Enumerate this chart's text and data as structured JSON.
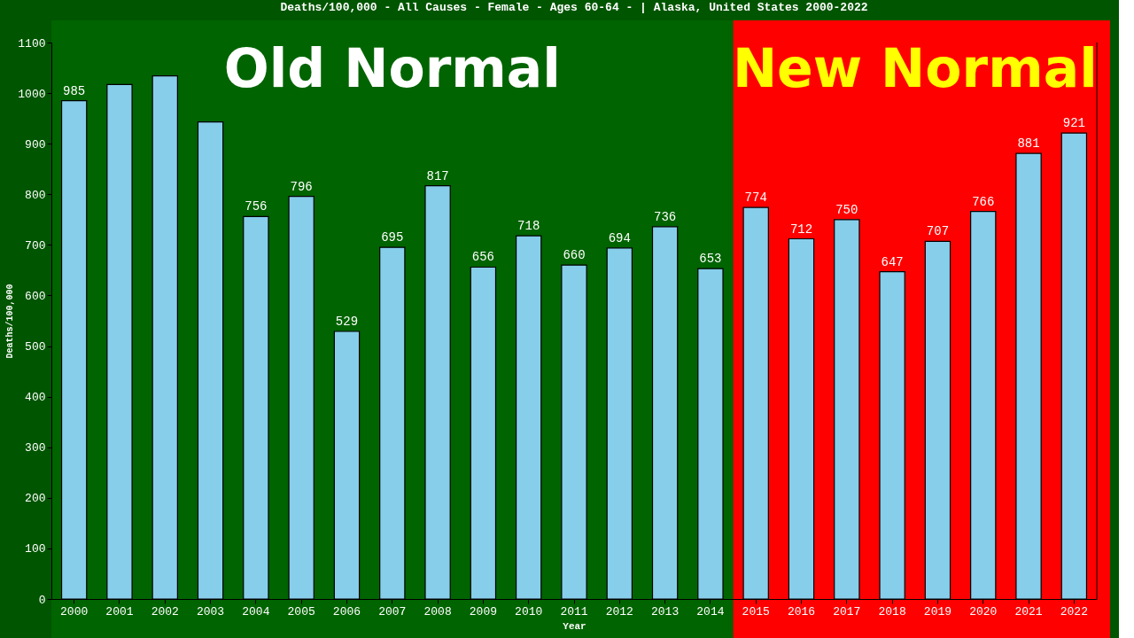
{
  "chart_data": {
    "type": "bar",
    "title": "Deaths/100,000 - All Causes - Female - Ages 60-64 -  | Alaska, United States 2000-2022",
    "xlabel": "Year",
    "ylabel": "Deaths/100,000",
    "categories": [
      "2000",
      "2001",
      "2002",
      "2003",
      "2004",
      "2005",
      "2006",
      "2007",
      "2008",
      "2009",
      "2010",
      "2011",
      "2012",
      "2013",
      "2014",
      "2015",
      "2016",
      "2017",
      "2018",
      "2019",
      "2020",
      "2021",
      "2022"
    ],
    "values": [
      985,
      1017,
      1034,
      943,
      756,
      796,
      529,
      695,
      817,
      656,
      718,
      660,
      694,
      736,
      653,
      774,
      712,
      750,
      647,
      707,
      766,
      881,
      921
    ],
    "value_labels": [
      "985",
      null,
      null,
      null,
      "756",
      "796",
      "529",
      "695",
      "817",
      "656",
      "718",
      "660",
      "694",
      "736",
      "653",
      "774",
      "712",
      "750",
      "647",
      "707",
      "766",
      "881",
      "921"
    ],
    "color": "#87ceeb",
    "ylim": [
      0,
      1100
    ],
    "yticks": [
      0,
      100,
      200,
      300,
      400,
      500,
      600,
      700,
      800,
      900,
      1000,
      1100
    ],
    "grid": false,
    "bands": [
      {
        "axis": "x",
        "from": "2000",
        "to": "2014",
        "label": "Old Normal",
        "color": "#006400"
      },
      {
        "axis": "x",
        "from": "2015",
        "to": "2022",
        "label": "New Normal",
        "color": "#ff0000"
      }
    ]
  }
}
